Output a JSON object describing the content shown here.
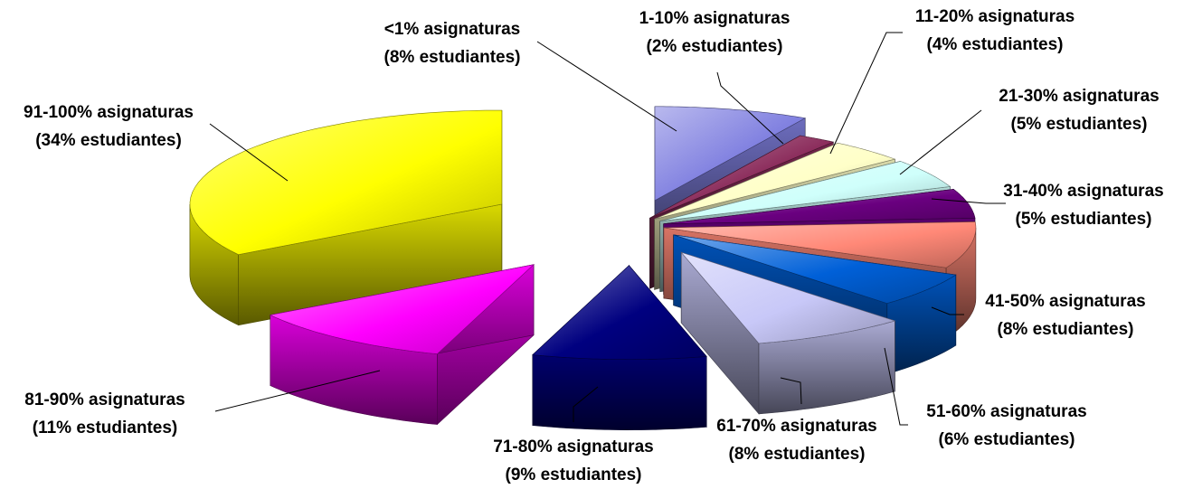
{
  "chart_data": {
    "type": "pie",
    "style": "3d-exploded",
    "title": "",
    "slices": [
      {
        "label": "<1% asignaturas",
        "sublabel": "(8% estudiantes)",
        "value": 8,
        "color": "#8080e0"
      },
      {
        "label": "1-10% asignaturas",
        "sublabel": "(2% estudiantes)",
        "value": 2,
        "color": "#8a2a5a"
      },
      {
        "label": "11-20% asignaturas",
        "sublabel": "(4% estudiantes)",
        "value": 4,
        "color": "#ffffc8"
      },
      {
        "label": "21-30% asignaturas",
        "sublabel": "(5% estudiantes)",
        "value": 5,
        "color": "#cffffb"
      },
      {
        "label": "31-40% asignaturas",
        "sublabel": "(5% estudiantes)",
        "value": 5,
        "color": "#6a0080"
      },
      {
        "label": "41-50% asignaturas",
        "sublabel": "(8% estudiantes)",
        "value": 8,
        "color": "#ff8877"
      },
      {
        "label": "51-60% asignaturas",
        "sublabel": "(6% estudiantes)",
        "value": 6,
        "color": "#0060d8"
      },
      {
        "label": "61-70% asignaturas",
        "sublabel": "(8% estudiantes)",
        "value": 8,
        "color": "#c8c8f8"
      },
      {
        "label": "71-80% asignaturas",
        "sublabel": "(9% estudiantes)",
        "value": 9,
        "color": "#000080"
      },
      {
        "label": "81-90% asignaturas",
        "sublabel": "(11% estudiantes)",
        "value": 11,
        "color": "#ff00ff"
      },
      {
        "label": "91-100% asignaturas",
        "sublabel": "(34% estudiantes)",
        "value": 34,
        "color": "#ffff00"
      }
    ]
  }
}
